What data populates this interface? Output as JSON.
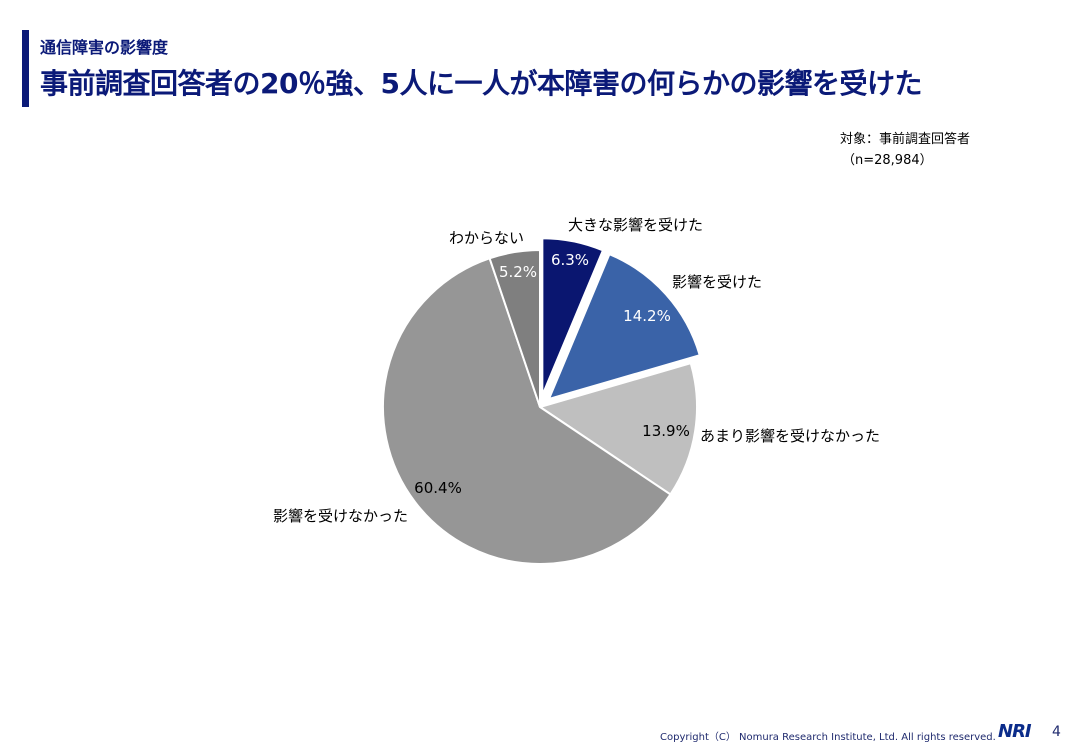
{
  "slide": {
    "subtitle": "通信障害の影響度",
    "title": "事前調査回答者の20％強、5人に一人が本障害の何らかの影響を受けた",
    "target_label": "対象：事前調査回答者",
    "sample_label": "（n=28,984）",
    "copyright": "Copyright（C） Nomura Research Institute, Ltd. All rights reserved.",
    "logo": "NRI",
    "page_number": "4"
  },
  "chart_data": {
    "type": "pie",
    "title": "",
    "slices": [
      {
        "label": "大きな影響を受けた",
        "value": 6.3,
        "value_label": "6.3%",
        "color": "#0a1670",
        "exploded": true
      },
      {
        "label": "影響を受けた",
        "value": 14.2,
        "value_label": "14.2%",
        "color": "#3a63a8",
        "exploded": true
      },
      {
        "label": "あまり影響を受けなかった",
        "value": 13.9,
        "value_label": "13.9%",
        "color": "#bfbfbf",
        "exploded": false
      },
      {
        "label": "影響を受けなかった",
        "value": 60.4,
        "value_label": "60.4%",
        "color": "#969696",
        "exploded": false
      },
      {
        "label": "わからない",
        "value": 5.2,
        "value_label": "5.2%",
        "color": "#7f7f7f",
        "exploded": false
      }
    ]
  }
}
